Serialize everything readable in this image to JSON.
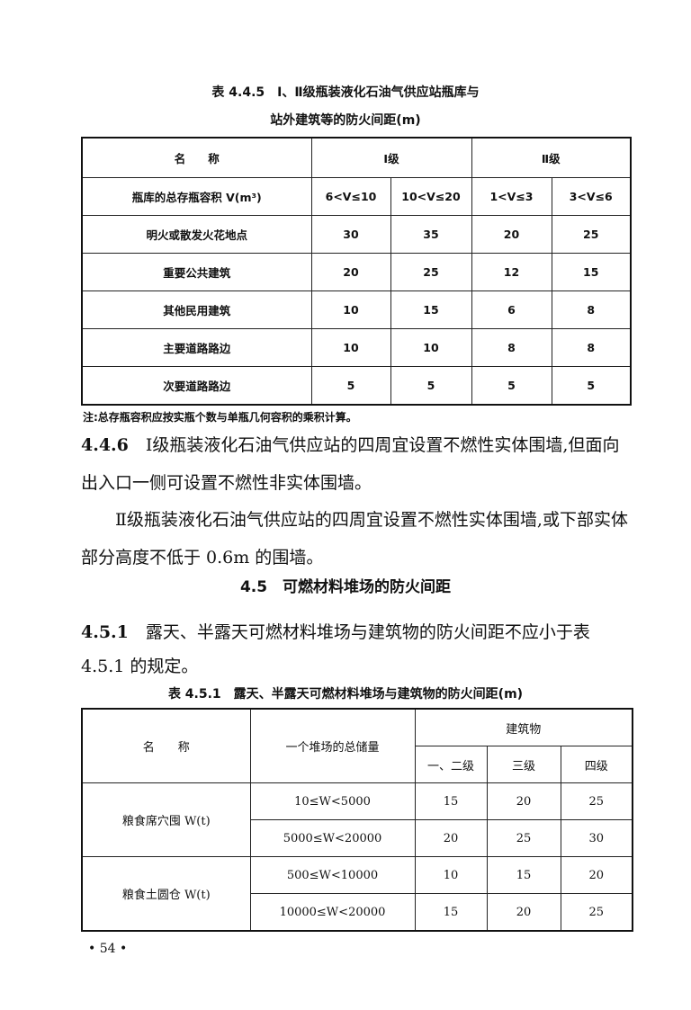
{
  "table1": {
    "caption_line1": "表 4.4.5　Ⅰ、Ⅱ级瓶装液化石油气供应站瓶库与",
    "caption_line2": "站外建筑等的防火间距(m)",
    "header": {
      "name": "名　　称",
      "grade1": "Ⅰ级",
      "grade2": "Ⅱ级"
    },
    "volume_row": {
      "label": "瓶库的总存瓶容积 V(m³)",
      "ranges": [
        "6<V≤10",
        "10<V≤20",
        "1<V≤3",
        "3<V≤6"
      ]
    },
    "rows": [
      {
        "label": "明火或散发火花地点",
        "values": [
          "30",
          "35",
          "20",
          "25"
        ]
      },
      {
        "label": "重要公共建筑",
        "values": [
          "20",
          "25",
          "12",
          "15"
        ]
      },
      {
        "label": "其他民用建筑",
        "values": [
          "10",
          "15",
          "6",
          "8"
        ]
      },
      {
        "label": "主要道路路边",
        "values": [
          "10",
          "10",
          "8",
          "8"
        ]
      },
      {
        "label": "次要道路路边",
        "values": [
          "5",
          "5",
          "5",
          "5"
        ]
      }
    ],
    "note": "注:总存瓶容积应按实瓶个数与单瓶几何容积的乘积计算。"
  },
  "clause_446": {
    "number": "4.4.6",
    "text1": "Ⅰ级瓶装液化石油气供应站的四周宜设置不燃性实体围墙,但面向出入口一侧可设置不燃性非实体围墙。",
    "text2": "Ⅱ级瓶装液化石油气供应站的四周宜设置不燃性实体围墙,或下部实体部分高度不低于 0.6m 的围墙。"
  },
  "section": {
    "title": "4.5　可燃材料堆场的防火间距"
  },
  "clause_451": {
    "number": "4.5.1",
    "text": "露天、半露天可燃材料堆场与建筑物的防火间距不应小于表 4.5.1 的规定。"
  },
  "table2": {
    "caption": "表 4.5.1　露天、半露天可燃材料堆场与建筑物的防火间距(m)",
    "header": {
      "name": "名　　称",
      "storage": "一个堆场的总储量",
      "building": "建筑物",
      "grades": [
        "一、二级",
        "三级",
        "四级"
      ]
    },
    "groups": [
      {
        "label": "粮食席穴囤 W(t)",
        "rows": [
          {
            "range": "10≤W<5000",
            "values": [
              "15",
              "20",
              "25"
            ]
          },
          {
            "range": "5000≤W<20000",
            "values": [
              "20",
              "25",
              "30"
            ]
          }
        ]
      },
      {
        "label": "粮食土圆仓 W(t)",
        "rows": [
          {
            "range": "500≤W<10000",
            "values": [
              "10",
              "15",
              "20"
            ]
          },
          {
            "range": "10000≤W<20000",
            "values": [
              "15",
              "20",
              "25"
            ]
          }
        ]
      }
    ]
  },
  "page_number": "• 54 •"
}
